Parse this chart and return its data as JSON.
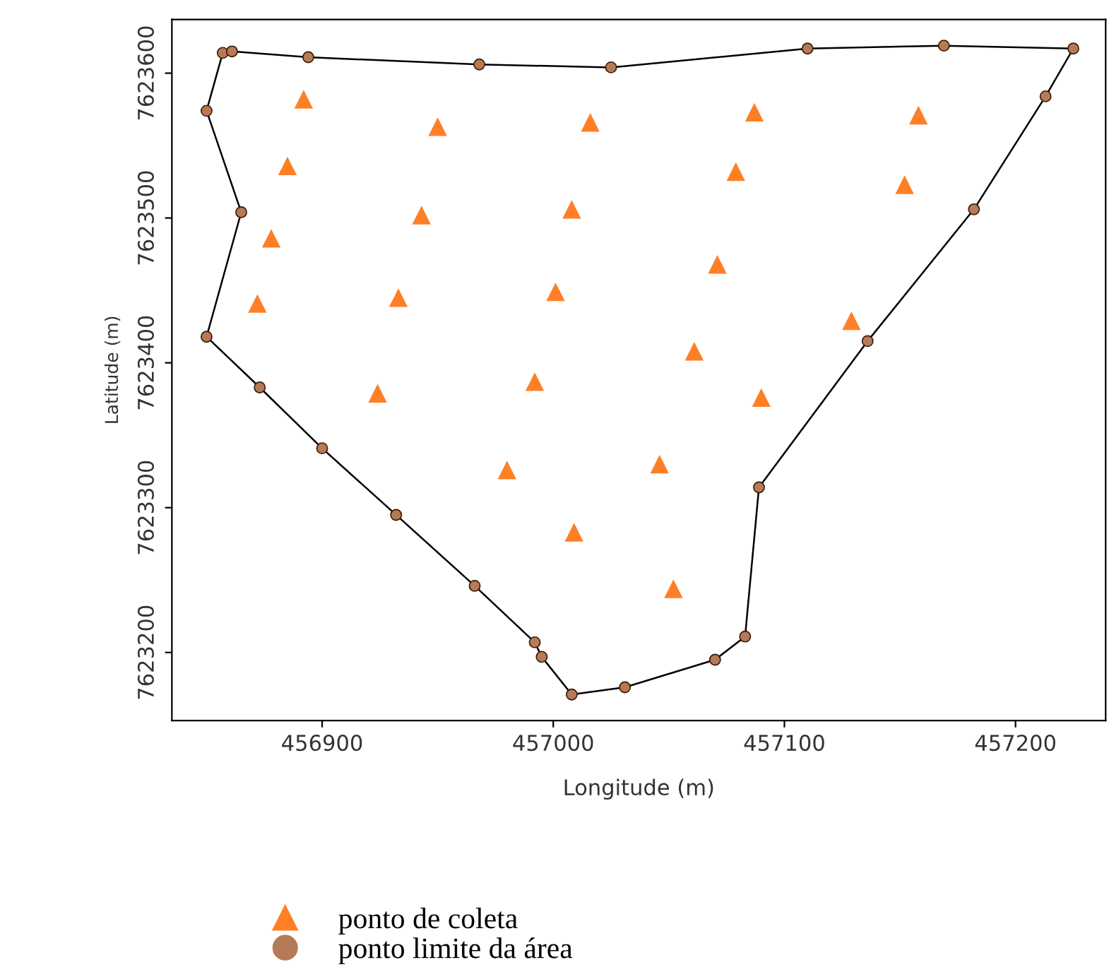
{
  "chart_data": {
    "type": "scatter",
    "xlabel": "Longitude (m)",
    "ylabel": "Latitude (m)",
    "xlim": [
      456835,
      457239
    ],
    "ylim": [
      7623153,
      7623637
    ],
    "xticks": [
      456900,
      457000,
      457100,
      457200
    ],
    "yticks": [
      7623200,
      7623300,
      7623400,
      7623500,
      7623600
    ],
    "grid": false,
    "legend": "bottom",
    "series": [
      {
        "type": "line",
        "color": "#000000",
        "marker": "none",
        "x": [
          456857,
          456861,
          456894,
          456968,
          457025,
          457110,
          457169,
          457225
        ],
        "values": [
          7623614,
          7623615,
          7623611,
          7623606,
          7623604,
          7623617,
          7623619,
          7623617
        ]
      },
      {
        "type": "line",
        "color": "#000000",
        "marker": "none",
        "x": [
          457225,
          457213,
          457182,
          457136,
          457089,
          457083,
          457070,
          457031,
          457008,
          456995,
          456992,
          456966,
          456932,
          456900,
          456873,
          456850
        ],
        "values": [
          7623617,
          7623584,
          7623506,
          7623415,
          7623314,
          7623211,
          7623195,
          7623176,
          7623171,
          7623197,
          7623207,
          7623246,
          7623295,
          7623341,
          7623383,
          7623418
        ]
      },
      {
        "type": "line",
        "color": "#000000",
        "marker": "none",
        "x": [
          456850,
          456865
        ],
        "values": [
          7623418,
          7623504
        ]
      },
      {
        "type": "line",
        "color": "#000000",
        "marker": "none",
        "x": [
          456865,
          456850
        ],
        "values": [
          7623504,
          7623574
        ]
      },
      {
        "type": "line",
        "color": "#000000",
        "marker": "none",
        "x": [
          456850,
          456857
        ],
        "values": [
          7623574,
          7623614
        ]
      },
      {
        "type": "scatter",
        "name": "ponto de coleta",
        "color": "#ff7f27",
        "marker": "triangle",
        "x": [
          456892,
          456950,
          457016,
          457087,
          457158,
          456885,
          457079,
          457152,
          456943,
          457008,
          456878,
          457071,
          456872,
          456933,
          457001,
          457129,
          457061,
          456924,
          456992,
          457090,
          456980,
          457046,
          457009,
          457052
        ],
        "values": [
          7623582,
          7623563,
          7623566,
          7623573,
          7623571,
          7623536,
          7623532,
          7623523,
          7623502,
          7623506,
          7623486,
          7623468,
          7623441,
          7623445,
          7623449,
          7623429,
          7623408,
          7623379,
          7623387,
          7623376,
          7623326,
          7623330,
          7623283,
          7623244
        ]
      },
      {
        "type": "scatter",
        "name": "ponto limite da área",
        "color": "#b57a57",
        "marker": "circle",
        "x": [
          456857,
          456861,
          456894,
          456968,
          457025,
          457110,
          457169,
          457225,
          457213,
          457182,
          457136,
          457089,
          457083,
          457070,
          457031,
          457008,
          456995,
          456992,
          456966,
          456932,
          456900,
          456873,
          456850,
          456865,
          456850
        ],
        "values": [
          7623614,
          7623615,
          7623611,
          7623606,
          7623604,
          7623617,
          7623619,
          7623617,
          7623584,
          7623506,
          7623415,
          7623314,
          7623211,
          7623195,
          7623176,
          7623171,
          7623197,
          7623207,
          7623246,
          7623295,
          7623341,
          7623383,
          7623418,
          7623504,
          7623574
        ]
      }
    ]
  }
}
